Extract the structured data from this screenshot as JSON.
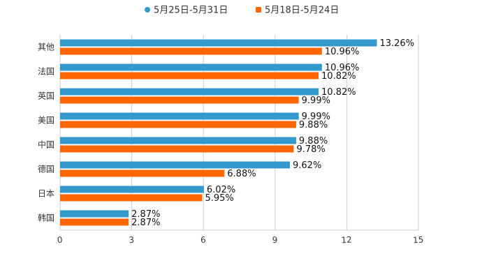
{
  "chart_data": {
    "type": "bar",
    "orientation": "horizontal",
    "title": "",
    "xlabel": "",
    "ylabel": "",
    "xlim": [
      0,
      15
    ],
    "x_ticks": [
      0,
      3,
      6,
      9,
      12,
      15
    ],
    "grid": true,
    "legend_position": "top-center",
    "categories": [
      "其他",
      "法国",
      "英国",
      "美国",
      "中国",
      "德国",
      "日本",
      "韩国"
    ],
    "series": [
      {
        "name": "5月25日-5月31日",
        "color": "#3399cc",
        "values": [
          13.26,
          10.96,
          10.82,
          9.99,
          9.88,
          9.62,
          6.02,
          2.87
        ],
        "labels": [
          "13.26%",
          "10.96%",
          "10.82%",
          "9.99%",
          "9.88%",
          "9.62%",
          "6.02%",
          "2.87%"
        ]
      },
      {
        "name": "5月18日-5月24日",
        "color": "#ff6600",
        "values": [
          10.96,
          10.82,
          9.99,
          9.88,
          9.78,
          6.88,
          5.95,
          2.87
        ],
        "labels": [
          "10.96%",
          "10.82%",
          "9.99%",
          "9.88%",
          "9.78%",
          "6.88%",
          "5.95%",
          "2.87%"
        ]
      }
    ]
  }
}
